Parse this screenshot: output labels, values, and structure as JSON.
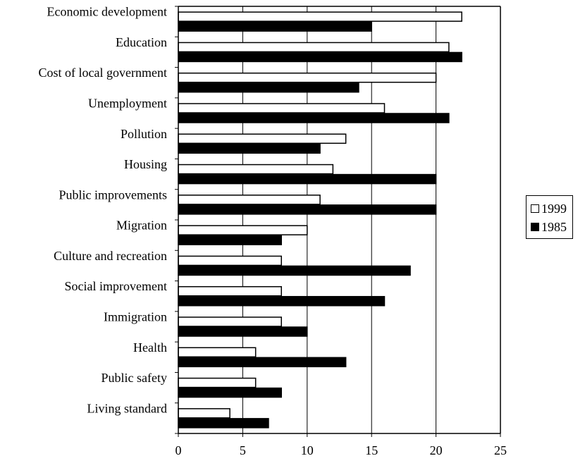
{
  "chart_data": {
    "type": "bar",
    "orientation": "horizontal",
    "categories": [
      "Economic development",
      "Education",
      "Cost of local government",
      "Unemployment",
      "Pollution",
      "Housing",
      "Public improvements",
      "Migration",
      "Culture and recreation",
      "Social improvement",
      "Immigration",
      "Health",
      "Public safety",
      "Living standard"
    ],
    "series": [
      {
        "name": "1999",
        "color": "#ffffff",
        "values": [
          22,
          21,
          20,
          16,
          13,
          12,
          11,
          10,
          8,
          8,
          8,
          6,
          6,
          4
        ]
      },
      {
        "name": "1985",
        "color": "#000000",
        "values": [
          15,
          22,
          14,
          21,
          11,
          20,
          20,
          8,
          18,
          16,
          10,
          13,
          8,
          7
        ]
      }
    ],
    "xlim": [
      0,
      25
    ],
    "xticks": [
      0,
      5,
      10,
      15,
      20,
      25
    ],
    "grid": true,
    "legend_position": "right"
  }
}
